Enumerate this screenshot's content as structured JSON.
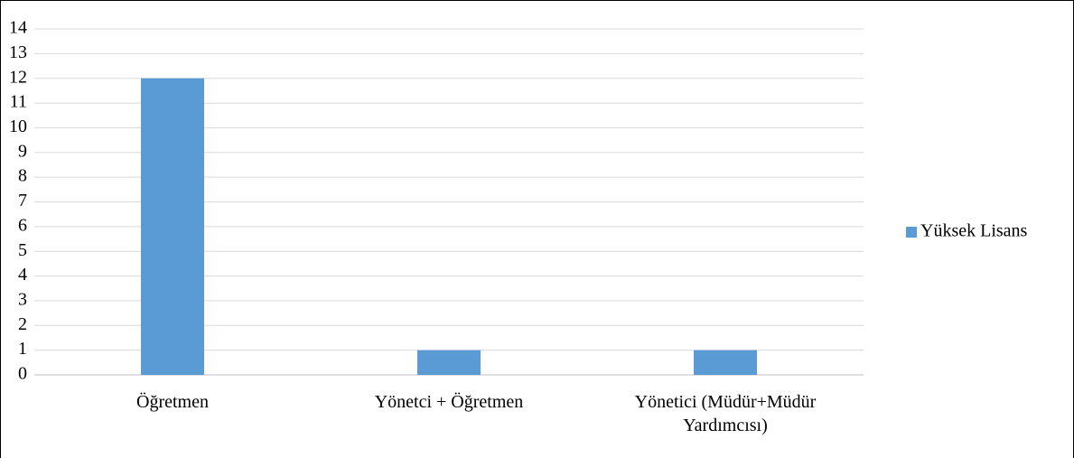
{
  "chart_data": {
    "type": "bar",
    "categories": [
      "Öğretmen",
      "Yönetci + Öğretmen",
      "Yönetici (Müdür+Müdür Yardımcısı)"
    ],
    "series": [
      {
        "name": "Yüksek Lisans",
        "color": "#5b9bd5",
        "values": [
          12,
          1,
          1
        ]
      }
    ],
    "ylim": [
      0,
      14
    ],
    "yticks": [
      0,
      1,
      2,
      3,
      4,
      5,
      6,
      7,
      8,
      9,
      10,
      11,
      12,
      13,
      14
    ],
    "grid": true,
    "legend": "right"
  }
}
